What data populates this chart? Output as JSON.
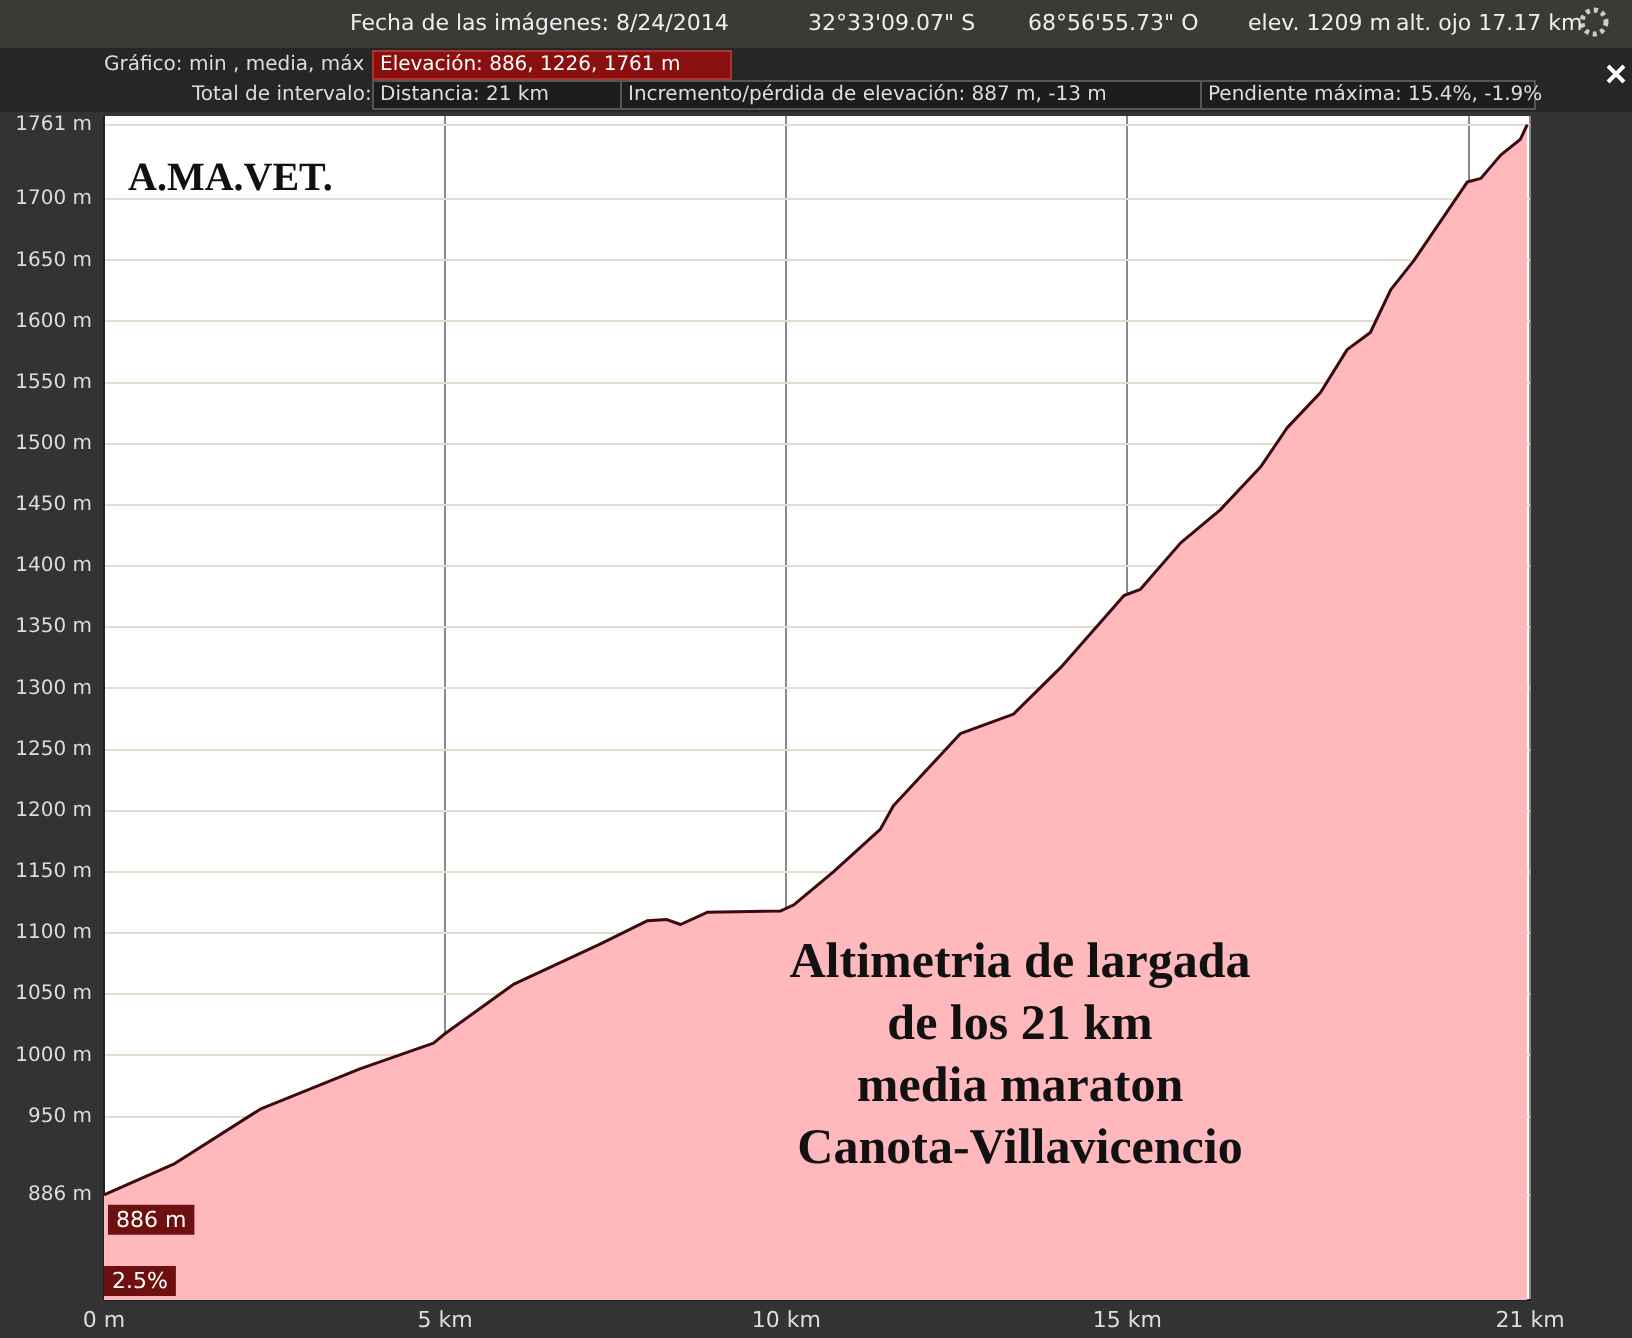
{
  "chart_data": {
    "type": "area",
    "title": "Altimetria de largada\nde los 21 km\nmedia maraton\nCanota-Villavicencio",
    "annotations": [
      "Fecha de las imágenes: 8/24/2014",
      "32°33'09.07\" S",
      "68°56'55.73\" O",
      "elev.  1209 m",
      "alt. ojo  17.17 km",
      "Gráfico: min , media, máx",
      "Elevación: 886, 1226, 1761 m",
      "Total de intervalo:",
      "Distancia: 21 km",
      "Incremento/pérdida de elevación: 887 m, -13 m",
      "Pendiente máxima: 15.4%, -1.9%",
      "A.MA.VET.",
      "2.5%",
      {
        "text": "886 m",
        "x": 0,
        "y": 886
      }
    ],
    "x": [
      0,
      1.02,
      2.29,
      3.75,
      4.83,
      4.98,
      6.0,
      7.27,
      7.96,
      8.25,
      8.45,
      8.84,
      9.91,
      10.11,
      10.69,
      11.38,
      11.57,
      12.55,
      12.94,
      13.33,
      14.02,
      14.95,
      15.19,
      15.78,
      16.36,
      16.95,
      17.34,
      17.83,
      18.22,
      18.56,
      18.86,
      19.2,
      19.98,
      20.18,
      20.47,
      20.76,
      20.86
    ],
    "series": [
      {
        "color": "#ffb8bc",
        "values": [
          886,
          911,
          956,
          989,
          1010,
          1017,
          1058,
          1091,
          1110,
          1111,
          1107,
          1117,
          1118,
          1123,
          1150,
          1185,
          1204,
          1263,
          1271,
          1279,
          1317,
          1376,
          1381,
          1419,
          1446,
          1481,
          1513,
          1542,
          1577,
          1591,
          1626,
          1650,
          1714,
          1717,
          1736,
          1749,
          1761
        ]
      }
    ],
    "xlim": [
      0,
      20.9
    ],
    "xticks": [
      {
        "value": 0,
        "label": "0 m"
      },
      {
        "value": 5,
        "label": "5 km"
      },
      {
        "value": 10,
        "label": "10 km"
      },
      {
        "value": 15,
        "label": "15 km"
      },
      {
        "value": 20,
        "label": null
      },
      {
        "value": 20.9,
        "label": "21 km"
      }
    ],
    "ylim": [
      800,
      1768
    ],
    "yticks": [
      {
        "value": 886,
        "label": "886 m"
      },
      {
        "value": 950,
        "label": "950 m"
      },
      {
        "value": 1000,
        "label": "1000 m"
      },
      {
        "value": 1050,
        "label": "1050 m"
      },
      {
        "value": 1100,
        "label": "1100 m"
      },
      {
        "value": 1150,
        "label": "1150 m"
      },
      {
        "value": 1200,
        "label": "1200 m"
      },
      {
        "value": 1250,
        "label": "1250 m"
      },
      {
        "value": 1300,
        "label": "1300 m"
      },
      {
        "value": 1350,
        "label": "1350 m"
      },
      {
        "value": 1400,
        "label": "1400 m"
      },
      {
        "value": 1450,
        "label": "1450 m"
      },
      {
        "value": 1500,
        "label": "1500 m"
      },
      {
        "value": 1550,
        "label": "1550 m"
      },
      {
        "value": 1600,
        "label": "1600 m"
      },
      {
        "value": 1650,
        "label": "1650 m"
      },
      {
        "value": 1700,
        "label": "1700 m"
      },
      {
        "value": 1761,
        "label": "1761 m"
      }
    ],
    "grid": true,
    "legend": false
  }
}
